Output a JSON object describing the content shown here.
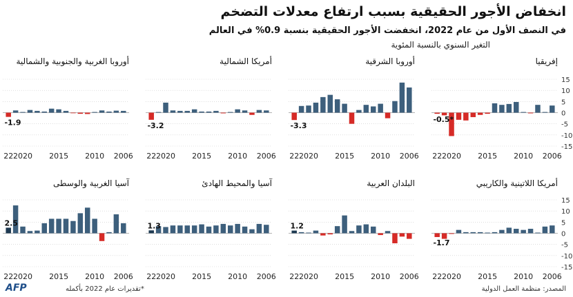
{
  "header": {
    "title": "انخفاض الأجور الحقيقية بسبب ارتفاع معدلات التضخم",
    "subtitle": "في النصف الأول من عام 2022، انخفضت الأجور الحقيقية بنسبة 0.9% في العالم",
    "unit_label": "التغير السنوي بالنسبة المئوية"
  },
  "footer": {
    "source": "المصدر: منظمة العمل الدولية",
    "note": "*تقديرات عام 2022 بأكمله",
    "logo": "AFP"
  },
  "colors": {
    "positive": "#3d5f7c",
    "negative": "#d62b27",
    "highlight": "#1e3a52",
    "grid": "#c8c8c8"
  },
  "chart_data": [
    {
      "type": "bar",
      "title": "إفريقيا",
      "years": [
        2006,
        2007,
        2008,
        2009,
        2010,
        2011,
        2012,
        2013,
        2014,
        2015,
        2016,
        2017,
        2018,
        2019,
        2020,
        2021,
        2022
      ],
      "values": [
        3.2,
        0.3,
        3.5,
        -0.3,
        0.3,
        4.8,
        3.9,
        3.5,
        4.2,
        -0.5,
        -1.0,
        -2.0,
        -3.5,
        -3.2,
        -10.5,
        -1.2,
        -0.5
      ],
      "last_label": "-0.5*",
      "ylim": [
        -15,
        15
      ],
      "yticks": [
        15,
        10,
        5,
        0,
        -5,
        -10,
        -15
      ],
      "xticks": [
        "2006",
        "2010",
        "2015",
        "2020",
        "22"
      ]
    },
    {
      "type": "bar",
      "title": "أوروبا الشرقية",
      "years": [
        2006,
        2007,
        2008,
        2009,
        2010,
        2011,
        2012,
        2013,
        2014,
        2015,
        2016,
        2017,
        2018,
        2019,
        2020,
        2021,
        2022
      ],
      "values": [
        11.3,
        13.5,
        5.2,
        -2.5,
        4.0,
        2.8,
        3.5,
        1.2,
        -5.0,
        4.0,
        6.0,
        8.0,
        7.0,
        4.5,
        3.2,
        3.0,
        -3.3
      ],
      "last_label": "-3.3",
      "ylim": [
        -15,
        15
      ],
      "xticks": [
        "2006",
        "2010",
        "2015",
        "2020",
        "22"
      ]
    },
    {
      "type": "bar",
      "title": "أمريكا الشمالية",
      "years": [
        2006,
        2007,
        2008,
        2009,
        2010,
        2011,
        2012,
        2013,
        2014,
        2015,
        2016,
        2017,
        2018,
        2019,
        2020,
        2021,
        2022
      ],
      "values": [
        1.0,
        1.2,
        -1.0,
        1.0,
        1.5,
        0.3,
        -0.3,
        0.8,
        0.5,
        0.5,
        1.5,
        0.8,
        0.8,
        1.0,
        4.5,
        0.3,
        -3.2
      ],
      "last_label": "-3.2",
      "ylim": [
        -15,
        15
      ],
      "xticks": [
        "2006",
        "2010",
        "2015",
        "2020",
        "22"
      ]
    },
    {
      "type": "bar",
      "title": "أوروبا الغربية والجنوبية والشمالية",
      "years": [
        2006,
        2007,
        2008,
        2009,
        2010,
        2011,
        2012,
        2013,
        2014,
        2015,
        2016,
        2017,
        2018,
        2019,
        2020,
        2021,
        2022
      ],
      "values": [
        0.8,
        0.9,
        0.5,
        1.0,
        0.3,
        -0.6,
        -0.5,
        -0.2,
        0.8,
        1.5,
        1.8,
        0.5,
        0.8,
        1.2,
        0.3,
        1.0,
        -1.9
      ],
      "last_label": "-1.9",
      "ylim": [
        -15,
        15
      ],
      "xticks": [
        "2006",
        "2010",
        "2015",
        "2020",
        "22"
      ]
    },
    {
      "type": "bar",
      "title": "أمريكا اللاتينية والكاريبي",
      "years": [
        2006,
        2007,
        2008,
        2009,
        2010,
        2011,
        2012,
        2013,
        2014,
        2015,
        2016,
        2017,
        2018,
        2019,
        2020,
        2021,
        2022
      ],
      "values": [
        3.5,
        3.0,
        0.3,
        2.0,
        1.5,
        2.0,
        2.5,
        1.5,
        0.5,
        0.3,
        0.5,
        0.5,
        0.5,
        1.5,
        -0.3,
        -2.5,
        -1.7
      ],
      "last_label": "-1.7",
      "ylim": [
        -15,
        15
      ],
      "xticks": [
        "2006",
        "2010",
        "2015",
        "2020",
        "22"
      ]
    },
    {
      "type": "bar",
      "title": "البلدان العربية",
      "years": [
        2006,
        2007,
        2008,
        2009,
        2010,
        2011,
        2012,
        2013,
        2014,
        2015,
        2016,
        2017,
        2018,
        2019,
        2020,
        2021,
        2022
      ],
      "values": [
        -2.5,
        -1.5,
        -4.5,
        1.0,
        -0.8,
        3.0,
        4.0,
        3.5,
        1.0,
        8.0,
        3.2,
        -0.5,
        -1.0,
        1.2,
        0.3,
        0.5,
        1.2
      ],
      "last_label": "1.2",
      "ylim": [
        -15,
        15
      ],
      "xticks": [
        "2006",
        "2010",
        "2015",
        "2020",
        "22"
      ]
    },
    {
      "type": "bar",
      "title": "آسيا والمحيط الهادئ",
      "years": [
        2006,
        2007,
        2008,
        2009,
        2010,
        2011,
        2012,
        2013,
        2014,
        2015,
        2016,
        2017,
        2018,
        2019,
        2020,
        2021,
        2022
      ],
      "values": [
        3.8,
        4.2,
        1.8,
        3.0,
        4.2,
        3.5,
        4.2,
        3.5,
        3.0,
        4.0,
        3.5,
        3.5,
        3.5,
        3.5,
        2.8,
        3.2,
        1.3
      ],
      "last_label": "1.3",
      "ylim": [
        -15,
        15
      ],
      "xticks": [
        "2006",
        "2010",
        "2015",
        "2020",
        "22"
      ]
    },
    {
      "type": "bar",
      "title": "آسيا الغربية والوسطى",
      "years": [
        2006,
        2007,
        2008,
        2009,
        2010,
        2011,
        2012,
        2013,
        2014,
        2015,
        2016,
        2017,
        2018,
        2019,
        2020,
        2021,
        2022
      ],
      "values": [
        4.5,
        8.5,
        0.5,
        -3.5,
        6.5,
        11.5,
        9.0,
        5.5,
        6.5,
        6.5,
        6.5,
        4.5,
        1.2,
        1.0,
        3.0,
        12.5,
        2.5
      ],
      "last_label": "2.5",
      "ylim": [
        -15,
        15
      ],
      "xticks": [
        "2006",
        "2010",
        "2015",
        "2020",
        "22"
      ]
    }
  ]
}
